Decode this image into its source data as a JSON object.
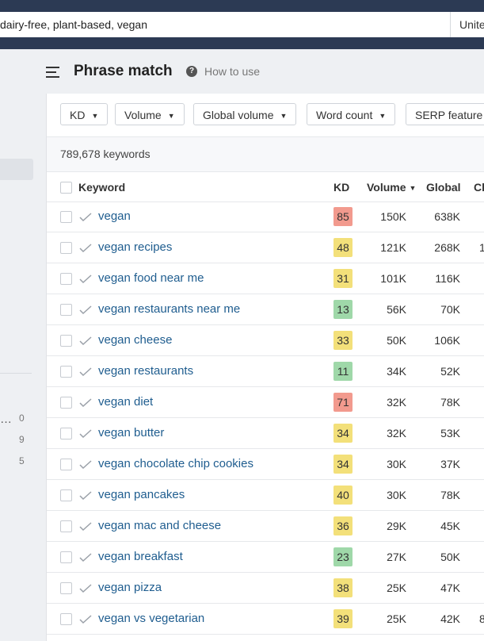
{
  "search": {
    "query": "dairy-free, plant-based, vegan",
    "country": "Unite"
  },
  "sidebar": {
    "items": [
      {
        "label": "…",
        "value": "0"
      },
      {
        "label": "",
        "value": "9"
      },
      {
        "label": "",
        "value": "5"
      }
    ]
  },
  "header": {
    "title": "Phrase match",
    "help_icon": "?",
    "help": "How to use"
  },
  "filters": [
    "KD",
    "Volume",
    "Global volume",
    "Word count",
    "SERP feature"
  ],
  "filter_caret": "▼",
  "keyword_count": "789,678 keywords",
  "table": {
    "columns": [
      "Keyword",
      "KD",
      "Volume",
      "Global",
      "Cl"
    ],
    "sort_caret": "▼",
    "rows": [
      [
        "vegan",
        85,
        "150K",
        "638K"
      ],
      [
        "vegan recipes",
        48,
        "121K",
        "268K",
        "1"
      ],
      [
        "vegan food near me",
        31,
        "101K",
        "116K"
      ],
      [
        "vegan restaurants near me",
        13,
        "56K",
        "70K"
      ],
      [
        "vegan cheese",
        33,
        "50K",
        "106K"
      ],
      [
        "vegan restaurants",
        11,
        "34K",
        "52K"
      ],
      [
        "vegan diet",
        71,
        "32K",
        "78K"
      ],
      [
        "vegan butter",
        34,
        "32K",
        "53K"
      ],
      [
        "vegan chocolate chip cookies",
        34,
        "30K",
        "37K"
      ],
      [
        "vegan pancakes",
        40,
        "30K",
        "78K"
      ],
      [
        "vegan mac and cheese",
        36,
        "29K",
        "45K"
      ],
      [
        "vegan breakfast",
        23,
        "27K",
        "50K"
      ],
      [
        "vegan pizza",
        38,
        "25K",
        "47K"
      ],
      [
        "vegan vs vegetarian",
        39,
        "25K",
        "42K",
        "8"
      ]
    ]
  }
}
